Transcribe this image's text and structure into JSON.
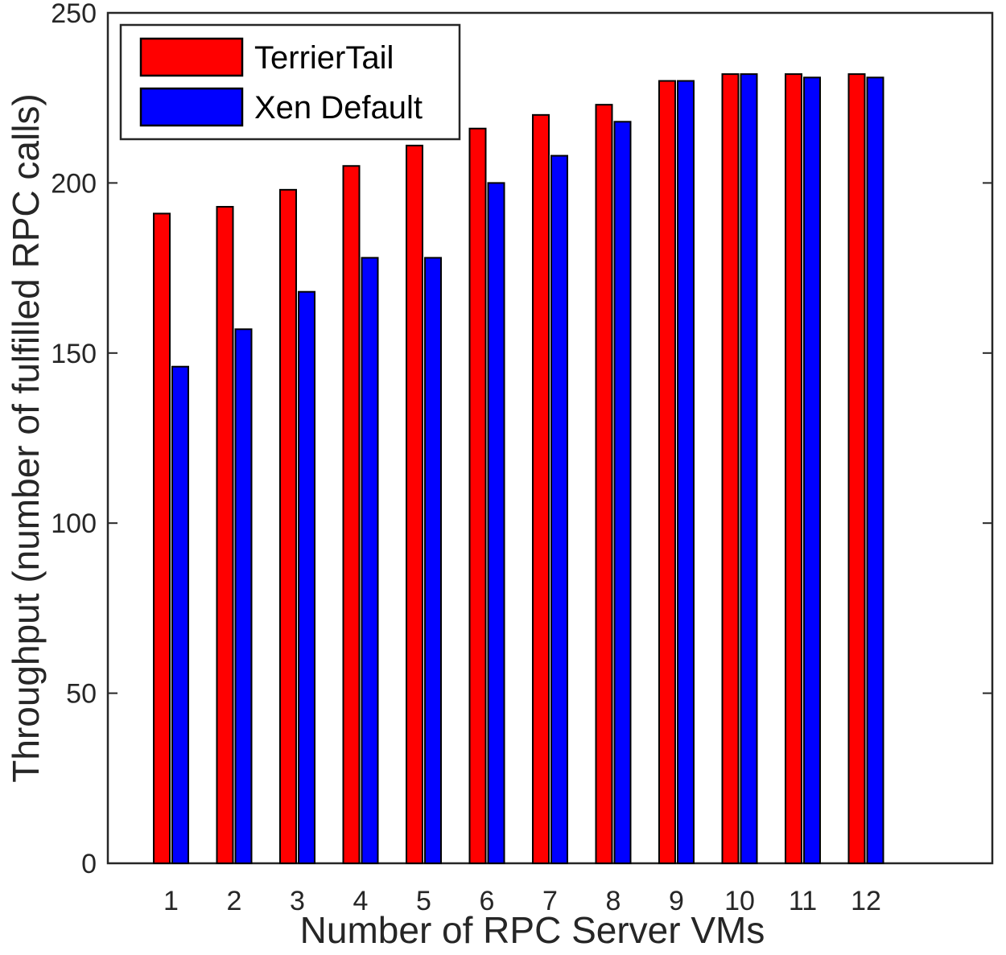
{
  "chart_data": {
    "type": "bar",
    "xlabel": "Number of RPC Server VMs",
    "ylabel": "Throughput (number of fulfilled RPC calls)",
    "ylim": [
      0,
      250
    ],
    "yticks": [
      0,
      50,
      100,
      150,
      200,
      250
    ],
    "xlim": [
      0,
      14
    ],
    "categories": [
      "1",
      "2",
      "3",
      "4",
      "5",
      "6",
      "7",
      "8",
      "9",
      "10",
      "11",
      "12"
    ],
    "series": [
      {
        "name": "TerrierTail",
        "color": "#ff0000",
        "values": [
          191,
          193,
          198,
          205,
          211,
          216,
          220,
          223,
          230,
          232,
          232,
          232
        ]
      },
      {
        "name": "Xen Default",
        "color": "#0000ff",
        "values": [
          146,
          157,
          168,
          178,
          178,
          200,
          208,
          218,
          230,
          232,
          231,
          231
        ]
      }
    ],
    "grid": false,
    "legend": "top-left"
  }
}
